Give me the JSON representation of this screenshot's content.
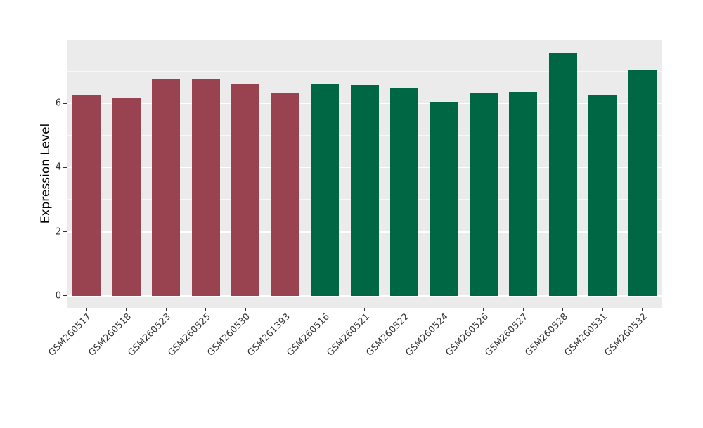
{
  "chart_data": {
    "type": "bar",
    "title": "",
    "xlabel": "",
    "ylabel": "Expression Level",
    "ylim": [
      -0.38,
      8.0
    ],
    "yticks": [
      0,
      2,
      4,
      6
    ],
    "gridlines": {
      "major": [
        0,
        2,
        4,
        6,
        8
      ],
      "minor": [
        1,
        3,
        5,
        7
      ]
    },
    "grid": "on",
    "legend": "none",
    "categories": [
      "GSM260517",
      "GSM260518",
      "GSM260523",
      "GSM260525",
      "GSM260530",
      "GSM261393",
      "GSM260516",
      "GSM260521",
      "GSM260522",
      "GSM260524",
      "GSM260526",
      "GSM260527",
      "GSM260528",
      "GSM260531",
      "GSM260532"
    ],
    "values": [
      6.26,
      6.17,
      6.77,
      6.75,
      6.62,
      6.31,
      6.62,
      6.58,
      6.48,
      6.05,
      6.32,
      6.35,
      7.59,
      6.27,
      7.06
    ],
    "bar_colors": [
      "#9A4350",
      "#9A4350",
      "#9A4350",
      "#9A4350",
      "#9A4350",
      "#9A4350",
      "#006745",
      "#006745",
      "#006745",
      "#006745",
      "#006745",
      "#006745",
      "#006745",
      "#006745",
      "#006745"
    ]
  },
  "colors": {
    "bar_red": "#9A4350",
    "bar_green": "#006745",
    "plot_background": "#EBEBEB",
    "grid_major": "#FFFFFF",
    "grid_minor": "rgba(255,255,255,0.65)",
    "tick_mark": "#333333",
    "tick_text": "#333333",
    "axis_title_text": "#000000"
  }
}
